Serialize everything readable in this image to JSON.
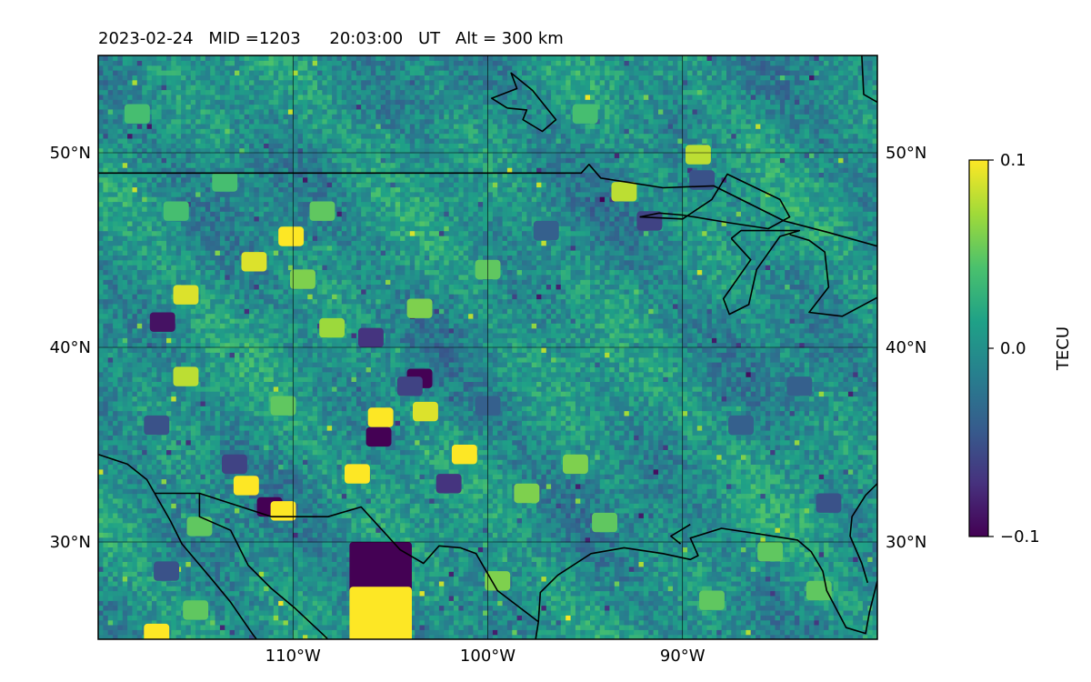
{
  "title": {
    "date": "2023-02-24",
    "mid": "MID =1203",
    "time": "20:03:00",
    "ut": "UT",
    "alt": "Alt = 300 km"
  },
  "colors": {
    "viridis": [
      "#440154",
      "#46327e",
      "#365c8d",
      "#277f8e",
      "#1fa187",
      "#4ac16d",
      "#a0da39",
      "#fde725"
    ],
    "coastline": "#000000",
    "gridline": "#000000",
    "background_value_hex": "#21918c"
  },
  "chart_data": {
    "type": "heatmap",
    "map_extent": {
      "lon": [
        -120,
        -80
      ],
      "lat": [
        25,
        55
      ]
    },
    "grid": true,
    "x_ticks": [
      {
        "lon": -110,
        "label": "110°W"
      },
      {
        "lon": -100,
        "label": "100°W"
      },
      {
        "lon": -90,
        "label": "90°W"
      }
    ],
    "y_ticks": [
      {
        "lat": 50,
        "label": "50°N"
      },
      {
        "lat": 40,
        "label": "40°N"
      },
      {
        "lat": 30,
        "label": "30°N"
      }
    ],
    "colorbar": {
      "label": "TECU",
      "range": [
        -0.1,
        0.1
      ],
      "ticks": [
        {
          "value": 0.1,
          "label": "0.1"
        },
        {
          "value": 0.0,
          "label": "0.0"
        },
        {
          "value": -0.1,
          "label": "−0.1"
        }
      ]
    },
    "hotspots": [
      {
        "lon": -115.5,
        "lat": 42.7,
        "value": 0.09
      },
      {
        "lon": -116.7,
        "lat": 41.3,
        "value": -0.09
      },
      {
        "lon": -115.5,
        "lat": 38.5,
        "value": 0.08
      },
      {
        "lon": -110.1,
        "lat": 45.7,
        "value": 0.1
      },
      {
        "lon": -112.0,
        "lat": 44.4,
        "value": 0.09
      },
      {
        "lon": -105.5,
        "lat": 36.4,
        "value": 0.1
      },
      {
        "lon": -105.6,
        "lat": 35.4,
        "value": -0.1
      },
      {
        "lon": -103.5,
        "lat": 38.4,
        "value": -0.1
      },
      {
        "lon": -103.2,
        "lat": 36.7,
        "value": 0.09
      },
      {
        "lon": -106.7,
        "lat": 33.5,
        "value": 0.1
      },
      {
        "lon": -101.2,
        "lat": 34.5,
        "value": 0.1
      },
      {
        "lon": -112.4,
        "lat": 32.9,
        "value": 0.1
      },
      {
        "lon": -111.2,
        "lat": 31.8,
        "value": -0.1
      },
      {
        "lon": -110.5,
        "lat": 31.6,
        "value": 0.1
      },
      {
        "lon": -114.8,
        "lat": 30.8,
        "value": 0.05
      },
      {
        "lon": -105.5,
        "lat": 28.5,
        "value": -0.1
      },
      {
        "lon": -105.5,
        "lat": 26.2,
        "value": 0.1
      },
      {
        "lon": -116.5,
        "lat": 28.5,
        "value": -0.05
      },
      {
        "lon": -115.0,
        "lat": 26.5,
        "value": 0.05
      },
      {
        "lon": -117.0,
        "lat": 25.3,
        "value": 0.1
      },
      {
        "lon": -99.5,
        "lat": 28.0,
        "value": 0.06
      },
      {
        "lon": -89.2,
        "lat": 49.9,
        "value": 0.08
      },
      {
        "lon": -89.0,
        "lat": 48.6,
        "value": -0.05
      },
      {
        "lon": -93.0,
        "lat": 48.0,
        "value": 0.08
      },
      {
        "lon": -91.7,
        "lat": 46.5,
        "value": -0.06
      },
      {
        "lon": -102.0,
        "lat": 33.0,
        "value": -0.07
      },
      {
        "lon": -106.0,
        "lat": 40.5,
        "value": -0.07
      },
      {
        "lon": -109.5,
        "lat": 43.5,
        "value": 0.06
      },
      {
        "lon": -108.0,
        "lat": 41.0,
        "value": 0.07
      },
      {
        "lon": -103.5,
        "lat": 42.0,
        "value": 0.06
      },
      {
        "lon": -98.0,
        "lat": 32.5,
        "value": 0.06
      },
      {
        "lon": -85.5,
        "lat": 29.5,
        "value": 0.05
      },
      {
        "lon": -88.5,
        "lat": 27.0,
        "value": 0.05
      },
      {
        "lon": -83.0,
        "lat": 27.5,
        "value": 0.05
      },
      {
        "lon": -82.5,
        "lat": 32.0,
        "value": -0.05
      },
      {
        "lon": -113.0,
        "lat": 34.0,
        "value": -0.06
      },
      {
        "lon": -117.0,
        "lat": 36.0,
        "value": -0.05
      },
      {
        "lon": -110.5,
        "lat": 37.0,
        "value": 0.05
      },
      {
        "lon": -104.0,
        "lat": 38.0,
        "value": -0.06
      },
      {
        "lon": -100.0,
        "lat": 37.0,
        "value": -0.04
      },
      {
        "lon": -95.5,
        "lat": 34.0,
        "value": 0.06
      },
      {
        "lon": -94.0,
        "lat": 31.0,
        "value": 0.05
      },
      {
        "lon": -87.0,
        "lat": 36.0,
        "value": -0.04
      },
      {
        "lon": -84.0,
        "lat": 38.0,
        "value": -0.04
      },
      {
        "lon": -116.0,
        "lat": 47.0,
        "value": 0.04
      },
      {
        "lon": -118.0,
        "lat": 52.0,
        "value": 0.04
      },
      {
        "lon": -95.0,
        "lat": 52.0,
        "value": 0.04
      },
      {
        "lon": -100.0,
        "lat": 44.0,
        "value": 0.05
      },
      {
        "lon": -97.0,
        "lat": 46.0,
        "value": -0.04
      },
      {
        "lon": -108.5,
        "lat": 47.0,
        "value": 0.05
      },
      {
        "lon": -113.5,
        "lat": 48.5,
        "value": 0.04
      }
    ],
    "coastlines": [
      [
        [
          -120,
          48.96
        ],
        [
          -95.2,
          48.96
        ],
        [
          -94.8,
          49.4
        ],
        [
          -94.2,
          48.7
        ],
        [
          -91,
          48.2
        ],
        [
          -88.4,
          48.3
        ],
        [
          -84.8,
          46.5
        ],
        [
          -82.5,
          45.9
        ],
        [
          -80,
          45.2
        ]
      ],
      [
        [
          -80.8,
          55
        ],
        [
          -80.7,
          53
        ],
        [
          -80,
          52.6
        ]
      ],
      [
        [
          -99,
          52.3
        ],
        [
          -99.8,
          52.8
        ],
        [
          -98.5,
          53.3
        ],
        [
          -98.8,
          54.1
        ],
        [
          -97.7,
          53.2
        ],
        [
          -96.5,
          51.7
        ],
        [
          -97.2,
          51.1
        ],
        [
          -98.2,
          51.7
        ],
        [
          -98,
          52.2
        ],
        [
          -99,
          52.3
        ]
      ],
      [
        [
          -92.2,
          46.7
        ],
        [
          -90,
          46.6
        ],
        [
          -88.5,
          47.6
        ],
        [
          -87.7,
          48.9
        ],
        [
          -85,
          47.6
        ],
        [
          -84.5,
          46.7
        ],
        [
          -85.6,
          46.1
        ],
        [
          -87.6,
          46.4
        ],
        [
          -90,
          46.8
        ],
        [
          -91.2,
          46.9
        ],
        [
          -92.2,
          46.7
        ]
      ],
      [
        [
          -87.5,
          45.6
        ],
        [
          -86.5,
          44.5
        ],
        [
          -87.9,
          42.5
        ],
        [
          -87.6,
          41.7
        ],
        [
          -86.6,
          42.2
        ],
        [
          -86.2,
          44
        ],
        [
          -85,
          45.7
        ],
        [
          -84,
          46
        ],
        [
          -87,
          46
        ],
        [
          -87.5,
          45.6
        ]
      ],
      [
        [
          -84.5,
          45.8
        ],
        [
          -83.5,
          45.5
        ],
        [
          -82.7,
          44.9
        ],
        [
          -82.5,
          43.1
        ],
        [
          -83.5,
          41.8
        ],
        [
          -81.8,
          41.6
        ],
        [
          -79,
          43.1
        ],
        [
          -80,
          43.6
        ]
      ],
      [
        [
          -80,
          28
        ],
        [
          -80.4,
          26.4
        ],
        [
          -80.6,
          25.3
        ],
        [
          -81.6,
          25.6
        ],
        [
          -82.6,
          27.5
        ],
        [
          -82.8,
          28.5
        ],
        [
          -83.4,
          29.5
        ],
        [
          -84.1,
          30.1
        ],
        [
          -86,
          30.4
        ],
        [
          -88,
          30.7
        ],
        [
          -89.6,
          30.2
        ],
        [
          -89.2,
          29.3
        ],
        [
          -89.6,
          29.1
        ],
        [
          -91,
          29.4
        ],
        [
          -93,
          29.7
        ],
        [
          -94.7,
          29.4
        ],
        [
          -96.4,
          28.3
        ],
        [
          -97.3,
          27.4
        ],
        [
          -97.4,
          25.9
        ],
        [
          -97.7,
          24
        ],
        [
          -97.7,
          22
        ]
      ],
      [
        [
          -97.4,
          25.9
        ],
        [
          -99.5,
          27.5
        ],
        [
          -100.6,
          29.4
        ],
        [
          -101.4,
          29.7
        ],
        [
          -102.5,
          29.8
        ],
        [
          -103.3,
          28.9
        ],
        [
          -104.5,
          29.6
        ],
        [
          -106.5,
          31.8
        ],
        [
          -108.2,
          31.3
        ],
        [
          -111.1,
          31.3
        ],
        [
          -114.8,
          32.5
        ],
        [
          -117.1,
          32.5
        ]
      ],
      [
        [
          -117.1,
          32.5
        ],
        [
          -116.3,
          31.1
        ],
        [
          -115.7,
          29.9
        ],
        [
          -114.1,
          28
        ],
        [
          -113.2,
          26.9
        ],
        [
          -112.1,
          25.3
        ],
        [
          -110.5,
          23.2
        ]
      ],
      [
        [
          -114.8,
          32.5
        ],
        [
          -114.8,
          31.3
        ],
        [
          -113.2,
          30.6
        ],
        [
          -112.3,
          28.8
        ],
        [
          -111.1,
          27.6
        ],
        [
          -109.9,
          26.6
        ],
        [
          -108.3,
          25.1
        ],
        [
          -106,
          22
        ]
      ],
      [
        [
          -120,
          34.5
        ],
        [
          -118.5,
          34
        ],
        [
          -117.5,
          33.2
        ],
        [
          -117.1,
          32.5
        ]
      ],
      [
        [
          -80,
          33
        ],
        [
          -80.6,
          32.4
        ],
        [
          -81.3,
          31.3
        ],
        [
          -81.4,
          30.3
        ],
        [
          -80.8,
          28.9
        ],
        [
          -80.5,
          27.9
        ]
      ],
      [
        [
          -90.1,
          29.9
        ],
        [
          -90.6,
          30.3
        ],
        [
          -89.6,
          30.9
        ]
      ]
    ]
  }
}
